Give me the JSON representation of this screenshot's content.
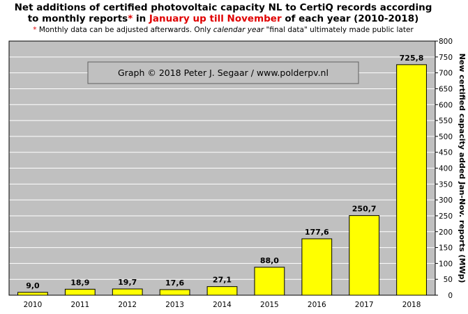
{
  "title": {
    "line1": "Net additions of certified photovoltaic capacity NL to CertiQ records according",
    "line2_pre": "to monthly reports",
    "line2_star": "*",
    "line2_mid": " in ",
    "line2_red1": "January up till November",
    "line2_post": " of each year (2010-2018)"
  },
  "subtitle": {
    "star": "*",
    "text_pre": " Monthly data can be adjusted afterwards. Only ",
    "text_italic": "calendar year",
    "text_post": " \"final data\" ultimately made public later"
  },
  "watermark": "Graph © 2018 Peter J. Segaar / www.polderpv.nl",
  "colors": {
    "plot_bg": "#c0c0c0",
    "bar_fill": "#ffff00",
    "bar_stroke": "#000000",
    "grid": "#ffffff",
    "accent_red": "#e00000"
  },
  "chart_data": {
    "type": "bar",
    "categories": [
      "2010",
      "2011",
      "2012",
      "2013",
      "2014",
      "2015",
      "2016",
      "2017",
      "2018"
    ],
    "values": [
      9.0,
      18.9,
      19.7,
      17.6,
      27.1,
      88.0,
      177.6,
      250.7,
      725.8
    ],
    "value_labels": [
      "9,0",
      "18,9",
      "19,7",
      "17,6",
      "27,1",
      "88,0",
      "177,6",
      "250,7",
      "725,8"
    ],
    "ylabel": "New certified capacity added Jan-Nov. reports (MWp)",
    "ylim": [
      0,
      800
    ],
    "yticks": [
      0,
      50,
      100,
      150,
      200,
      250,
      300,
      350,
      400,
      450,
      500,
      550,
      600,
      650,
      700,
      750,
      800
    ],
    "grid": true,
    "y_axis_side": "right"
  }
}
